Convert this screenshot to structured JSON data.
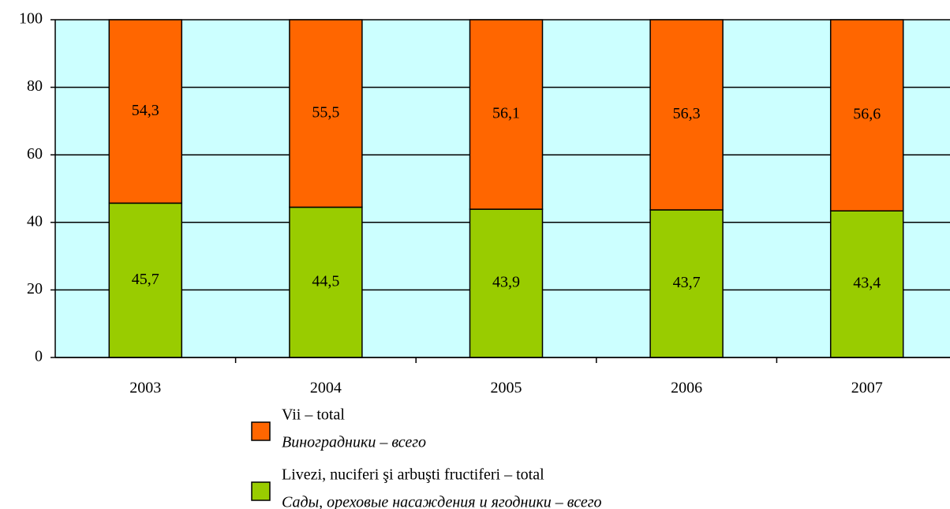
{
  "chart_data": {
    "type": "stacked_bar",
    "categories": [
      "2003",
      "2004",
      "2005",
      "2006",
      "2007"
    ],
    "series": [
      {
        "name": "Livezi, nuciferi şi arbuşti fructiferi – total",
        "name_alt": "Сады, ореховые насаждения и ягодники – всего",
        "color": "#99cc00",
        "values": [
          45.7,
          44.5,
          43.9,
          43.7,
          43.4
        ],
        "value_labels": [
          "45,7",
          "44,5",
          "43,9",
          "43,7",
          "43,4"
        ]
      },
      {
        "name": "Vii – total",
        "name_alt": "Виноградники – всего",
        "color": "#ff6600",
        "values": [
          54.3,
          55.5,
          56.1,
          56.3,
          56.6
        ],
        "value_labels": [
          "54,3",
          "55,5",
          "56,1",
          "56,3",
          "56,6"
        ]
      }
    ],
    "ylim": [
      0,
      100
    ],
    "yticks": [
      0,
      20,
      40,
      60,
      80,
      100
    ],
    "grid": true,
    "plot_background": "#ccffff"
  }
}
